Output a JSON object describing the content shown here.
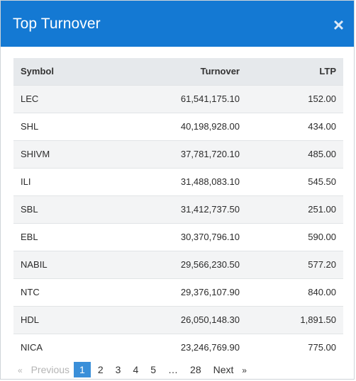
{
  "modal": {
    "title": "Top Turnover",
    "close_glyph": "×"
  },
  "table": {
    "columns": [
      "Symbol",
      "Turnover",
      "LTP"
    ],
    "rows": [
      {
        "symbol": "LEC",
        "turnover": "61,541,175.10",
        "ltp": "152.00"
      },
      {
        "symbol": "SHL",
        "turnover": "40,198,928.00",
        "ltp": "434.00"
      },
      {
        "symbol": "SHIVM",
        "turnover": "37,781,720.10",
        "ltp": "485.00"
      },
      {
        "symbol": "ILI",
        "turnover": "31,488,083.10",
        "ltp": "545.50"
      },
      {
        "symbol": "SBL",
        "turnover": "31,412,737.50",
        "ltp": "251.00"
      },
      {
        "symbol": "EBL",
        "turnover": "30,370,796.10",
        "ltp": "590.00"
      },
      {
        "symbol": "NABIL",
        "turnover": "29,566,230.50",
        "ltp": "577.20"
      },
      {
        "symbol": "NTC",
        "turnover": "29,376,107.90",
        "ltp": "840.00"
      },
      {
        "symbol": "HDL",
        "turnover": "26,050,148.30",
        "ltp": "1,891.50"
      },
      {
        "symbol": "NICA",
        "turnover": "23,246,769.90",
        "ltp": "775.00"
      }
    ]
  },
  "pagination": {
    "prev_arrow": "«",
    "prev_label": "Previous",
    "pages": [
      "1",
      "2",
      "3",
      "4",
      "5",
      "…",
      "28"
    ],
    "active_page": "1",
    "next_label": "Next",
    "next_arrow": "»"
  },
  "colors": {
    "header_bg": "#1479d3",
    "active_page_bg": "#3a8fd9"
  }
}
